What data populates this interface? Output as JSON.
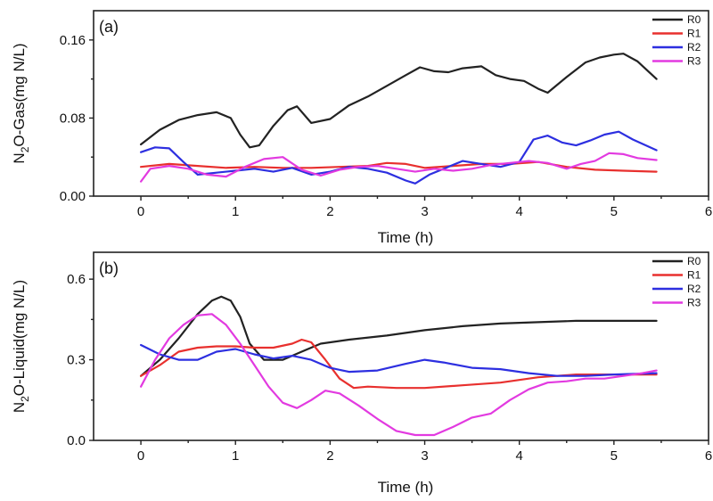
{
  "chart_data": [
    {
      "type": "line",
      "panel_label": "(a)",
      "xlabel": "Time (h)",
      "ylabel_main": "N",
      "ylabel_sub": "2",
      "ylabel_rest": "O-Gas(mg N/L)",
      "xlim": [
        -0.5,
        6
      ],
      "ylim": [
        0,
        0.19
      ],
      "xticks": [
        "0",
        "1",
        "2",
        "3",
        "4",
        "5",
        "6"
      ],
      "xtick_values": [
        0,
        1,
        2,
        3,
        4,
        5,
        6
      ],
      "yticks": [
        "0.00",
        "0.08",
        "0.16"
      ],
      "ytick_values": [
        0,
        0.08,
        0.16
      ],
      "legend_position": "top-right",
      "series": [
        {
          "name": "R0",
          "color": "#222222",
          "x": [
            0,
            0.2,
            0.4,
            0.6,
            0.8,
            0.95,
            1.05,
            1.15,
            1.25,
            1.4,
            1.55,
            1.65,
            1.8,
            2.0,
            2.2,
            2.4,
            2.6,
            2.8,
            2.95,
            3.1,
            3.25,
            3.4,
            3.6,
            3.75,
            3.9,
            4.05,
            4.2,
            4.3,
            4.5,
            4.7,
            4.85,
            5.0,
            5.1,
            5.25,
            5.45
          ],
          "y": [
            0.053,
            0.068,
            0.078,
            0.083,
            0.086,
            0.08,
            0.063,
            0.05,
            0.052,
            0.072,
            0.088,
            0.092,
            0.075,
            0.079,
            0.093,
            0.102,
            0.113,
            0.124,
            0.132,
            0.128,
            0.127,
            0.131,
            0.133,
            0.124,
            0.12,
            0.118,
            0.11,
            0.106,
            0.122,
            0.137,
            0.142,
            0.145,
            0.146,
            0.138,
            0.12
          ]
        },
        {
          "name": "R1",
          "color": "#e8302e",
          "x": [
            0,
            0.3,
            0.6,
            0.9,
            1.2,
            1.5,
            1.8,
            2.1,
            2.4,
            2.6,
            2.8,
            3.0,
            3.3,
            3.6,
            3.9,
            4.2,
            4.5,
            4.8,
            5.1,
            5.45
          ],
          "y": [
            0.03,
            0.033,
            0.031,
            0.029,
            0.03,
            0.029,
            0.029,
            0.03,
            0.031,
            0.034,
            0.033,
            0.029,
            0.031,
            0.033,
            0.033,
            0.035,
            0.03,
            0.027,
            0.026,
            0.025
          ]
        },
        {
          "name": "R2",
          "color": "#2d2fe0",
          "x": [
            0,
            0.15,
            0.3,
            0.45,
            0.6,
            0.8,
            1.0,
            1.2,
            1.4,
            1.6,
            1.8,
            2.0,
            2.2,
            2.4,
            2.6,
            2.8,
            2.9,
            3.05,
            3.2,
            3.4,
            3.6,
            3.8,
            4.0,
            4.15,
            4.3,
            4.45,
            4.6,
            4.75,
            4.9,
            5.05,
            5.2,
            5.45
          ],
          "y": [
            0.045,
            0.05,
            0.049,
            0.035,
            0.022,
            0.024,
            0.026,
            0.028,
            0.025,
            0.029,
            0.022,
            0.025,
            0.03,
            0.028,
            0.024,
            0.016,
            0.013,
            0.022,
            0.028,
            0.036,
            0.033,
            0.03,
            0.035,
            0.058,
            0.062,
            0.055,
            0.052,
            0.057,
            0.063,
            0.066,
            0.058,
            0.047
          ]
        },
        {
          "name": "R3",
          "color": "#e23ae0",
          "x": [
            0,
            0.1,
            0.3,
            0.5,
            0.7,
            0.9,
            1.1,
            1.3,
            1.5,
            1.7,
            1.9,
            2.1,
            2.3,
            2.5,
            2.7,
            2.9,
            3.1,
            3.3,
            3.5,
            3.7,
            3.9,
            4.1,
            4.3,
            4.5,
            4.65,
            4.8,
            4.95,
            5.1,
            5.25,
            5.45
          ],
          "y": [
            0.015,
            0.028,
            0.031,
            0.028,
            0.022,
            0.02,
            0.03,
            0.038,
            0.04,
            0.027,
            0.021,
            0.027,
            0.03,
            0.031,
            0.028,
            0.025,
            0.028,
            0.026,
            0.028,
            0.032,
            0.034,
            0.036,
            0.034,
            0.028,
            0.033,
            0.036,
            0.044,
            0.043,
            0.039,
            0.037
          ]
        }
      ]
    },
    {
      "type": "line",
      "panel_label": "(b)",
      "xlabel": "Time (h)",
      "ylabel_main": "N",
      "ylabel_sub": "2",
      "ylabel_rest": "O-Liquid(mg N/L)",
      "xlim": [
        -0.5,
        6
      ],
      "ylim": [
        0,
        0.7
      ],
      "xticks": [
        "0",
        "1",
        "2",
        "3",
        "4",
        "5",
        "6"
      ],
      "xtick_values": [
        0,
        1,
        2,
        3,
        4,
        5,
        6
      ],
      "yticks": [
        "0.0",
        "0.3",
        "0.6"
      ],
      "ytick_values": [
        0,
        0.3,
        0.6
      ],
      "legend_position": "top-right",
      "series": [
        {
          "name": "R0",
          "color": "#222222",
          "x": [
            0,
            0.2,
            0.4,
            0.6,
            0.75,
            0.85,
            0.95,
            1.05,
            1.15,
            1.3,
            1.5,
            1.7,
            1.9,
            2.2,
            2.6,
            3.0,
            3.4,
            3.8,
            4.2,
            4.6,
            5.0,
            5.45
          ],
          "y": [
            0.24,
            0.3,
            0.38,
            0.47,
            0.52,
            0.535,
            0.52,
            0.46,
            0.36,
            0.3,
            0.3,
            0.33,
            0.36,
            0.375,
            0.39,
            0.41,
            0.425,
            0.435,
            0.44,
            0.445,
            0.445,
            0.445
          ]
        },
        {
          "name": "R1",
          "color": "#e8302e",
          "x": [
            0,
            0.2,
            0.4,
            0.6,
            0.8,
            1.0,
            1.2,
            1.4,
            1.6,
            1.7,
            1.8,
            1.95,
            2.1,
            2.25,
            2.4,
            2.7,
            3.0,
            3.4,
            3.8,
            4.2,
            4.6,
            5.0,
            5.45
          ],
          "y": [
            0.24,
            0.28,
            0.33,
            0.345,
            0.35,
            0.35,
            0.345,
            0.345,
            0.36,
            0.375,
            0.365,
            0.3,
            0.23,
            0.195,
            0.2,
            0.195,
            0.195,
            0.205,
            0.215,
            0.235,
            0.245,
            0.245,
            0.245
          ]
        },
        {
          "name": "R2",
          "color": "#2d2fe0",
          "x": [
            0,
            0.2,
            0.4,
            0.6,
            0.8,
            1.0,
            1.2,
            1.4,
            1.6,
            1.8,
            2.0,
            2.2,
            2.5,
            2.8,
            3.0,
            3.2,
            3.5,
            3.8,
            4.1,
            4.4,
            4.7,
            5.0,
            5.45
          ],
          "y": [
            0.355,
            0.32,
            0.3,
            0.3,
            0.33,
            0.34,
            0.32,
            0.305,
            0.315,
            0.3,
            0.27,
            0.255,
            0.26,
            0.285,
            0.3,
            0.29,
            0.27,
            0.265,
            0.25,
            0.24,
            0.24,
            0.245,
            0.25
          ]
        },
        {
          "name": "R3",
          "color": "#e23ae0",
          "x": [
            0,
            0.15,
            0.3,
            0.45,
            0.6,
            0.75,
            0.9,
            1.05,
            1.2,
            1.35,
            1.5,
            1.65,
            1.8,
            1.95,
            2.1,
            2.3,
            2.5,
            2.7,
            2.9,
            3.1,
            3.3,
            3.5,
            3.7,
            3.9,
            4.1,
            4.3,
            4.5,
            4.7,
            4.9,
            5.1,
            5.3,
            5.45
          ],
          "y": [
            0.2,
            0.3,
            0.38,
            0.43,
            0.465,
            0.47,
            0.43,
            0.36,
            0.28,
            0.2,
            0.14,
            0.12,
            0.15,
            0.185,
            0.175,
            0.13,
            0.08,
            0.035,
            0.02,
            0.02,
            0.05,
            0.085,
            0.1,
            0.15,
            0.19,
            0.215,
            0.22,
            0.23,
            0.23,
            0.24,
            0.25,
            0.26
          ]
        }
      ]
    }
  ]
}
